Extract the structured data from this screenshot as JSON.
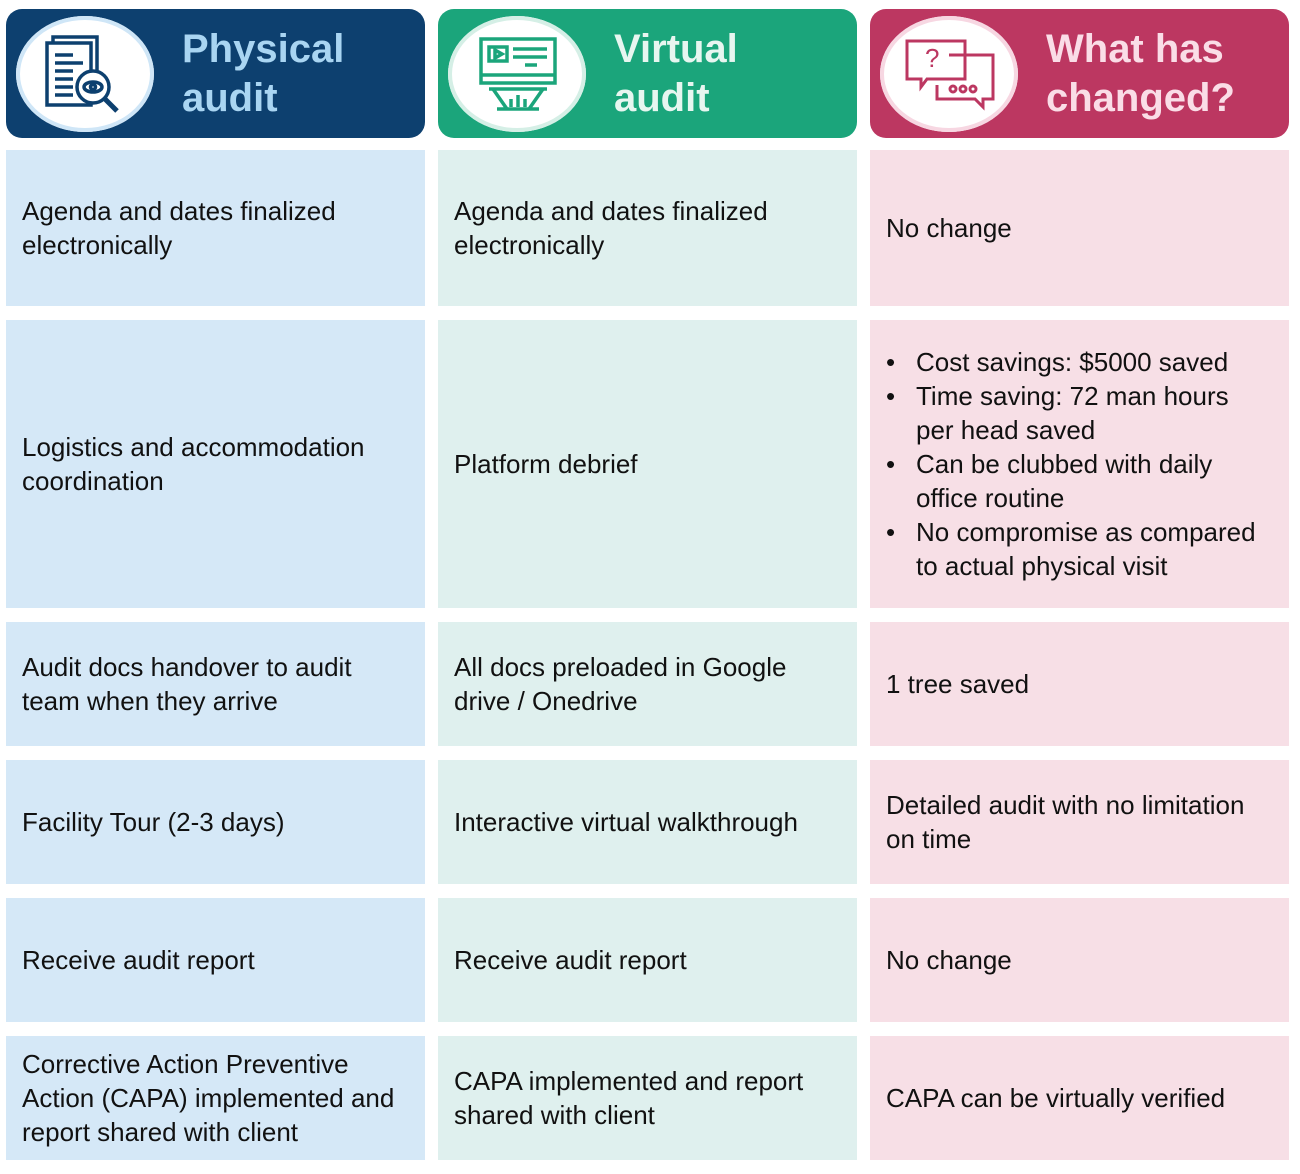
{
  "headers": [
    {
      "title_line1": "Physical",
      "title_line2": "audit",
      "icon": "document-search-eye-icon",
      "color": "#0d406f"
    },
    {
      "title_line1": "Virtual",
      "title_line2": "audit",
      "icon": "video-screen-presentation-icon",
      "color": "#1ba57b"
    },
    {
      "title_line1": "What has",
      "title_line2": "changed?",
      "icon": "question-chat-bubbles-icon",
      "color": "#bc3761"
    }
  ],
  "rows": [
    {
      "physical": "Agenda and dates finalized electronically",
      "virtual": "Agenda and dates finalized electronically",
      "changed": "No change"
    },
    {
      "physical": "Logistics and accommodation coordination",
      "virtual": "Platform debrief",
      "changed_bullets": [
        "Cost savings: $5000 saved",
        "Time saving: 72 man hours per head saved",
        "Can be clubbed with daily office routine",
        "No compromise as compared to actual physical visit"
      ]
    },
    {
      "physical": "Audit docs handover to audit team when they arrive",
      "virtual": "All docs preloaded in Google drive / Onedrive",
      "changed": "1 tree saved"
    },
    {
      "physical": "Facility Tour (2-3 days)",
      "virtual": "Interactive virtual walkthrough",
      "changed": "Detailed audit with no limitation on time"
    },
    {
      "physical": "Receive audit report",
      "virtual": "Receive audit report",
      "changed": "No change"
    },
    {
      "physical": "Corrective Action Preventive Action (CAPA) implemented and report shared with client",
      "virtual": "CAPA implemented and report shared with client",
      "changed": "CAPA can be virtually verified"
    }
  ]
}
